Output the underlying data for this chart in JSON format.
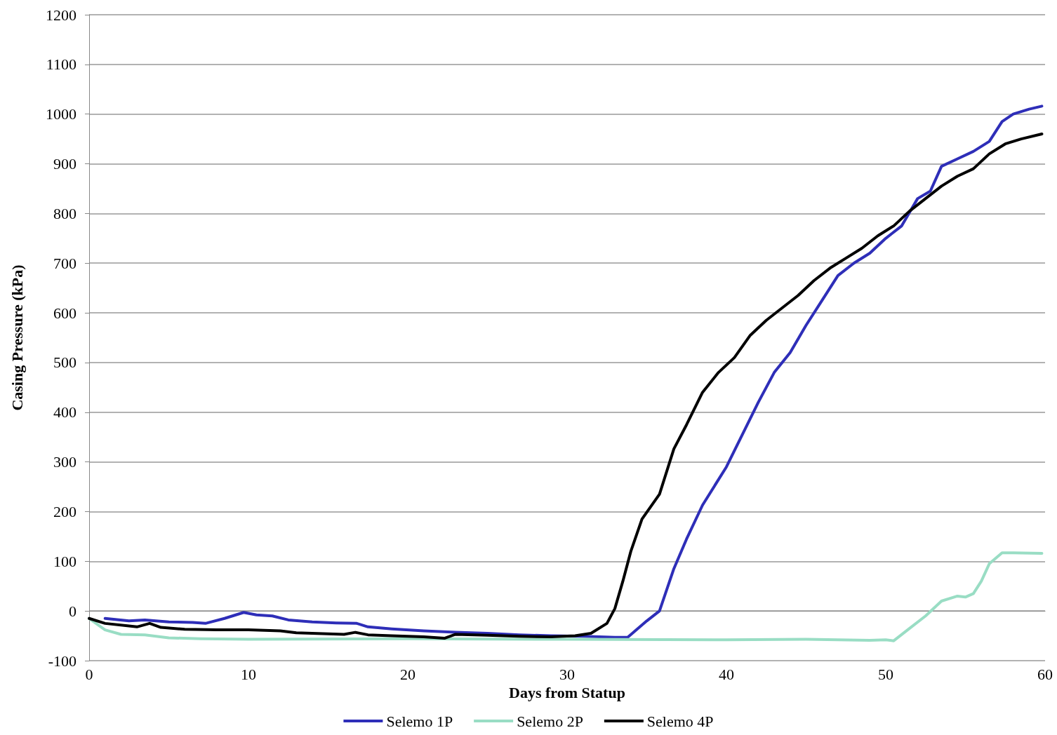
{
  "chart_data": {
    "type": "line",
    "xlabel": "Days from Statup",
    "ylabel": "Casing Pressure (kPa)",
    "xlim": [
      0,
      60
    ],
    "xticks": [
      0,
      10,
      20,
      30,
      40,
      50,
      60
    ],
    "ylim": [
      -100,
      1200
    ],
    "yticks": [
      -100,
      0,
      100,
      200,
      300,
      400,
      500,
      600,
      700,
      800,
      900,
      1000,
      1100,
      1200
    ],
    "grid": "y",
    "legend": "bottom",
    "marker": "none",
    "line_style": "solid",
    "series": [
      {
        "name": "Selemo 1P",
        "color": "#2e2eb8",
        "x": [
          1,
          2.5,
          3.5,
          5,
          6.5,
          7.3,
          8.5,
          9.7,
          10.5,
          11.5,
          12.5,
          14,
          15.5,
          16.8,
          17.5,
          19,
          21,
          23,
          25,
          27,
          29,
          31,
          33,
          33.8,
          35,
          35.8,
          36.7,
          37.5,
          38.5,
          40,
          41,
          42,
          43,
          44,
          45,
          46,
          47,
          48,
          49,
          50,
          51,
          52,
          52.8,
          53.5,
          54.5,
          55.5,
          56.5,
          57.3,
          58,
          59,
          59.8
        ],
        "values": [
          -15,
          -20,
          -18,
          -22,
          -23,
          -25,
          -15,
          -3,
          -8,
          -10,
          -18,
          -22,
          -24,
          -25,
          -32,
          -36,
          -40,
          -43,
          -45,
          -48,
          -50,
          -51,
          -53,
          -53,
          -20,
          0,
          85,
          145,
          213,
          290,
          355,
          420,
          480,
          520,
          575,
          625,
          675,
          700,
          720,
          750,
          775,
          830,
          845,
          895,
          910,
          925,
          945,
          985,
          1000,
          1010,
          1016
        ]
      },
      {
        "name": "Selemo 2P",
        "color": "#99ddc4",
        "x": [
          0,
          1,
          2,
          3.5,
          5,
          7,
          10,
          20,
          30,
          40,
          45,
          49,
          50,
          50.5,
          51.5,
          52.5,
          53.5,
          54.5,
          55,
          55.5,
          56,
          56.5,
          57.3,
          58,
          59.8
        ],
        "values": [
          -15,
          -38,
          -47,
          -48,
          -54,
          -56,
          -57,
          -56,
          -57,
          -58,
          -57,
          -59,
          -58,
          -60,
          -35,
          -10,
          20,
          30,
          28,
          35,
          60,
          95,
          117,
          117,
          116
        ]
      },
      {
        "name": "Selemo 4P",
        "color": "#000000",
        "x": [
          0,
          1,
          2.5,
          3,
          3.8,
          4.5,
          6,
          8,
          10,
          12,
          13,
          15,
          16,
          16.7,
          17.5,
          19,
          21,
          22.3,
          23,
          25,
          27,
          29,
          30.5,
          31.5,
          32.5,
          33,
          33.5,
          34,
          34.7,
          35.8,
          36.7,
          37.5,
          38.5,
          39.5,
          40.5,
          41.5,
          42.5,
          43.5,
          44.5,
          45.5,
          46.5,
          47.5,
          48.5,
          49.5,
          50.5,
          51.5,
          52.5,
          53.5,
          54.5,
          55.5,
          56.5,
          57.5,
          58.5,
          59.8
        ],
        "values": [
          -15,
          -25,
          -30,
          -32,
          -25,
          -33,
          -37,
          -38,
          -38,
          -40,
          -44,
          -46,
          -47,
          -43,
          -48,
          -50,
          -52,
          -55,
          -47,
          -49,
          -51,
          -52,
          -50,
          -45,
          -25,
          5,
          60,
          120,
          185,
          235,
          326,
          375,
          440,
          480,
          510,
          555,
          585,
          610,
          635,
          665,
          690,
          710,
          730,
          755,
          775,
          805,
          830,
          855,
          875,
          890,
          920,
          940,
          950,
          960
        ]
      }
    ]
  }
}
